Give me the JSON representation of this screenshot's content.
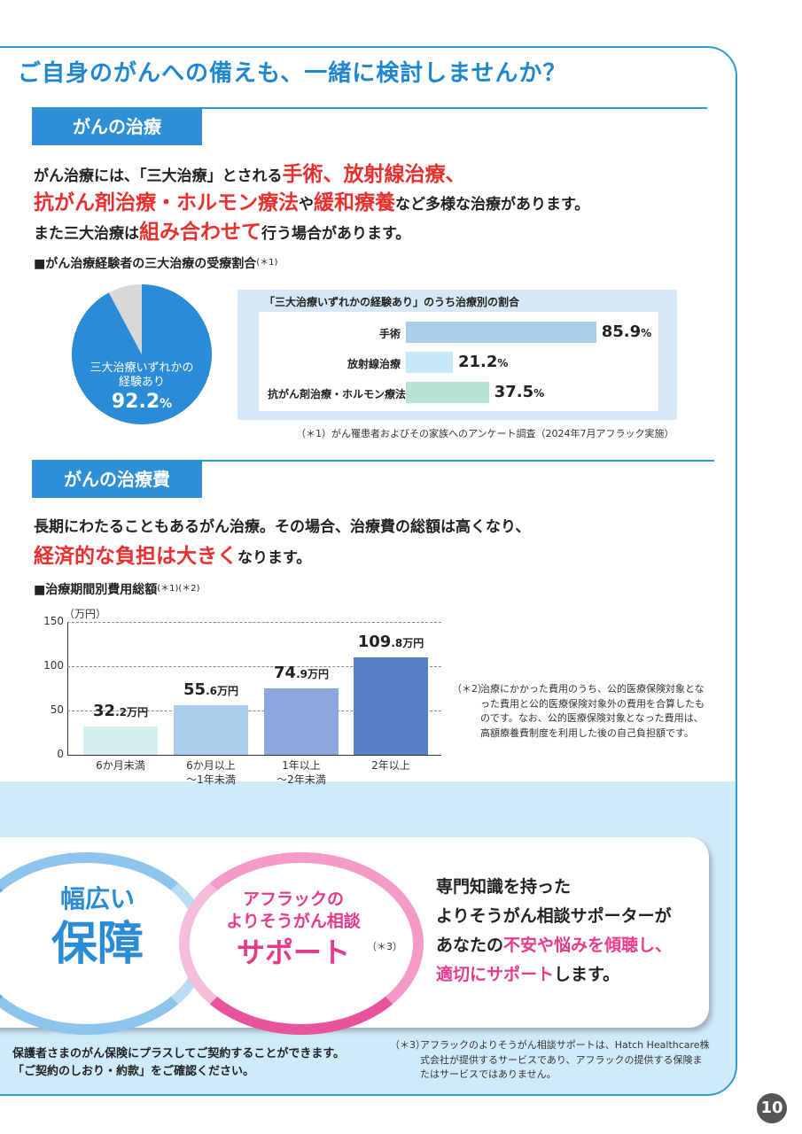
{
  "title": "ご自身のがんへの備えも、一緒に検討しませんか？",
  "treatment": {
    "heading": "がんの治療",
    "lead1_a": "がん治療には、「三大治療」とされる",
    "lead1_b": "手術、放射線治療、",
    "lead2_a": "抗がん剤治療・ホルモン療法",
    "lead2_b": "や",
    "lead2_c": "緩和療養",
    "lead2_d": "など多様な治療があります。",
    "lead3_a": "また三大治療は",
    "lead3_b": "組み合わせて",
    "lead3_c": "行う場合があります。",
    "chart_title": "■がん治療経験者の三大治療の受療割合",
    "chart_title_note": "(＊1)",
    "pie_label_line1": "三大治療いずれかの",
    "pie_label_line2": "経験あり",
    "pie_value": "92.2",
    "pie_unit": "%",
    "box_title": "「三大治療いずれかの経験あり」のうち治療別の割合",
    "footnote": "（＊1）がん罹患者およびその家族へのアンケート調査（2024年7月アフラック実施）"
  },
  "cost": {
    "heading": "がんの治療費",
    "lead1": "長期にわたることもあるがん治療。その場合、治療費の総額は高くなり、",
    "lead2_a": "経済的な負担は大きく",
    "lead2_b": "なります。",
    "chart_title": "■治療期間別費用総額",
    "chart_title_note": "(＊1)(＊2)",
    "y_unit": "（万円）",
    "note2_mark": "（＊2）",
    "note2_text": "治療にかかった費用のうち、公的医療保険対象となった費用と公的医療保険対象外の費用を合算したものです。なお、公的医療保険対象となった費用は、高額療養費制度を利用した後の自己負担額です。"
  },
  "chart_data": [
    {
      "type": "pie",
      "categories": [
        "三大治療いずれかの経験あり",
        ""
      ],
      "values": [
        92.2,
        7.8
      ],
      "colors": [
        "#2a8bd6",
        "#d8d8d8"
      ]
    },
    {
      "type": "bar",
      "orientation": "horizontal",
      "categories": [
        "手術",
        "放射線治療",
        "抗がん剤治療・ホルモン療法"
      ],
      "values": [
        85.9,
        21.2,
        37.5
      ],
      "display_values": [
        "85.9",
        "21.2",
        "37.5"
      ],
      "unit": "%",
      "colors": [
        "#a9cdec",
        "#c6e8f6",
        "#b5e4d6"
      ],
      "xlim": [
        0,
        100
      ]
    },
    {
      "type": "bar",
      "categories": [
        "6か月未満",
        "6か月以上\n～1年未満",
        "1年以上\n～2年未満",
        "2年以上"
      ],
      "values": [
        32.2,
        55.6,
        74.9,
        109.8
      ],
      "display_int": [
        "32",
        "55",
        "74",
        "109"
      ],
      "display_dec": [
        ".2万円",
        ".6万円",
        ".9万円",
        ".8万円"
      ],
      "colors": [
        "#d4eef2",
        "#a9cdec",
        "#8aa8dc",
        "#5580c8"
      ],
      "ylim": [
        0,
        150
      ],
      "yticks": [
        "0",
        "50",
        "100",
        "150"
      ],
      "ylabel": "（万円）",
      "grid": true
    }
  ],
  "support": {
    "ring1_line1": "幅広い",
    "ring1_line2": "保障",
    "ring2_line1": "アフラックの",
    "ring2_line2": "よりそうがん相談",
    "ring2_line3": "サポート",
    "ring2_note": "（＊3）",
    "desc1": "専門知識を持った",
    "desc2": "よりそうがん相談サポーターが",
    "desc3_a": "あなたの",
    "desc3_b": "不安や悩みを傾聴し、",
    "desc4_a": "適切にサポート",
    "desc4_b": "します。"
  },
  "bottom": {
    "left1": "保護者さまのがん保険にプラスしてご契約することができます。",
    "left2": "「ご契約のしおり・約款」をご確認ください。",
    "note3_mark": "（＊3）",
    "note3_text": "アフラックのよりそうがん相談サポートは、Hatch Healthcare株式会社が提供するサービスであり、アフラックの提供する保険またはサービスではありません。"
  },
  "page_number": "10"
}
